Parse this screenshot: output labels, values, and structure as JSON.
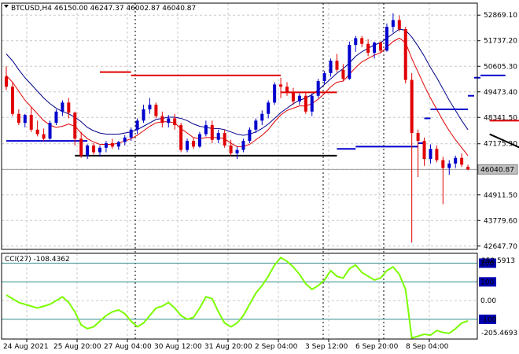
{
  "header": {
    "symbol_line": "BTCUSD,H4  46150.00 46247.37 46002.87 46040.87",
    "menu_icon": "triangle-down-icon"
  },
  "indicator": {
    "label": "CCI(27) -108.4362",
    "scale_top": "252.5913",
    "scale_bottom": "-205.4693",
    "levels": [
      200,
      100,
      0,
      -100
    ],
    "level_labels": [
      "200",
      "100",
      "0.00",
      "-100"
    ]
  },
  "price_axis": {
    "ticks": [
      "52869.10",
      "51737.20",
      "50605.30",
      "49473.40",
      "48341.50",
      "47175.30",
      "46043.40",
      "44911.50",
      "43779.60",
      "42647.70"
    ],
    "current_price": "46040.87"
  },
  "time_axis": {
    "labels": [
      "24 Aug 2021",
      "25 Aug 20:00",
      "27 Aug 04:00",
      "30 Aug 12:00",
      "31 Aug 20:00",
      "2 Sep 04:00",
      "3 Sep 12:00",
      "6 Sep 20:00",
      "8 Sep 04:00"
    ]
  },
  "colors": {
    "bull": "#0000cd",
    "bear": "#e00000",
    "grid": "#c8c8c8",
    "cci": "#7cfc00",
    "level_teal": "#2e8b8b",
    "current_price_box": "#c0c0c0"
  },
  "chart_data": [
    {
      "type": "candlestick",
      "title": "BTCUSD,H4",
      "ylim": [
        42500,
        53400
      ],
      "ohlc": [
        [
          50150,
          50600,
          49550,
          49700
        ],
        [
          49700,
          49900,
          48400,
          48500
        ],
        [
          48500,
          48700,
          48000,
          48100
        ],
        [
          48100,
          48500,
          47900,
          48450
        ],
        [
          48450,
          48800,
          47700,
          47800
        ],
        [
          47800,
          48200,
          47500,
          47600
        ],
        [
          47600,
          47850,
          47300,
          47400
        ],
        [
          47400,
          48200,
          47350,
          48100
        ],
        [
          48100,
          48700,
          48000,
          48600
        ],
        [
          48600,
          49100,
          48400,
          49000
        ],
        [
          49000,
          49200,
          48300,
          48550
        ],
        [
          48550,
          48600,
          47100,
          47400
        ],
        [
          47400,
          47700,
          46550,
          46650
        ],
        [
          46650,
          47150,
          46500,
          47100
        ],
        [
          47100,
          47200,
          46700,
          46800
        ],
        [
          46800,
          47100,
          46600,
          47000
        ],
        [
          47000,
          47300,
          46800,
          47200
        ],
        [
          47200,
          47400,
          46950,
          47050
        ],
        [
          47050,
          47300,
          46900,
          47250
        ],
        [
          47250,
          47550,
          47100,
          47450
        ],
        [
          47450,
          47900,
          47300,
          47800
        ],
        [
          47800,
          48300,
          47600,
          48200
        ],
        [
          48200,
          48900,
          48100,
          48700
        ],
        [
          48700,
          49200,
          48500,
          48900
        ],
        [
          48900,
          49000,
          48300,
          48400
        ],
        [
          48400,
          48600,
          47900,
          48100
        ],
        [
          48100,
          48450,
          47900,
          48300
        ],
        [
          48300,
          48500,
          47800,
          48000
        ],
        [
          48000,
          48100,
          46800,
          46900
        ],
        [
          46900,
          47400,
          46800,
          47300
        ],
        [
          47300,
          47450,
          46950,
          47050
        ],
        [
          47050,
          47700,
          47000,
          47600
        ],
        [
          47600,
          48200,
          47500,
          48000
        ],
        [
          48000,
          48200,
          47200,
          47350
        ],
        [
          47350,
          47800,
          47200,
          47650
        ],
        [
          47650,
          47800,
          47000,
          47100
        ],
        [
          47100,
          47350,
          46650,
          46750
        ],
        [
          46750,
          47050,
          46500,
          46900
        ],
        [
          46900,
          47400,
          46800,
          47300
        ],
        [
          47300,
          47900,
          47200,
          47800
        ],
        [
          47800,
          48300,
          47650,
          48200
        ],
        [
          48200,
          48650,
          48000,
          48500
        ],
        [
          48500,
          49100,
          48300,
          49000
        ],
        [
          49000,
          49900,
          48900,
          49800
        ],
        [
          49800,
          50100,
          49200,
          49700
        ],
        [
          49700,
          49900,
          49300,
          49450
        ],
        [
          49450,
          49650,
          48900,
          49050
        ],
        [
          49050,
          49400,
          48900,
          49300
        ],
        [
          49300,
          49450,
          48500,
          48600
        ],
        [
          48600,
          49400,
          48400,
          49300
        ],
        [
          49300,
          50050,
          49200,
          49950
        ],
        [
          49950,
          50400,
          49800,
          50300
        ],
        [
          50300,
          50950,
          50150,
          50850
        ],
        [
          50850,
          51150,
          50350,
          50450
        ],
        [
          50450,
          50700,
          49950,
          50050
        ],
        [
          50050,
          51700,
          50000,
          51550
        ],
        [
          51550,
          51950,
          51250,
          51850
        ],
        [
          51850,
          51950,
          51450,
          51600
        ],
        [
          51600,
          51800,
          51050,
          51200
        ],
        [
          51200,
          51700,
          50950,
          51650
        ],
        [
          51650,
          51700,
          51200,
          51300
        ],
        [
          51300,
          52500,
          51250,
          52350
        ],
        [
          52350,
          52950,
          52100,
          52650
        ],
        [
          52650,
          52850,
          52150,
          52250
        ],
        [
          52250,
          52350,
          49850,
          50000
        ],
        [
          50000,
          50300,
          42800,
          47650
        ],
        [
          47650,
          47800,
          45700,
          47300
        ],
        [
          47300,
          47450,
          46200,
          46500
        ],
        [
          46500,
          47150,
          46300,
          46950
        ],
        [
          46950,
          47100,
          46350,
          46450
        ],
        [
          46450,
          46600,
          44500,
          46100
        ],
        [
          46100,
          46450,
          45800,
          46300
        ],
        [
          46300,
          46650,
          46100,
          46550
        ],
        [
          46550,
          46750,
          46150,
          46250
        ],
        [
          46150,
          46247.37,
          46002.87,
          46040.87
        ]
      ],
      "ma_fast": [
        50200,
        49900,
        49500,
        49100,
        48800,
        48500,
        48200,
        48000,
        47900,
        47950,
        48050,
        47950,
        47650,
        47400,
        47250,
        47150,
        47150,
        47150,
        47200,
        47300,
        47400,
        47550,
        47750,
        47950,
        48100,
        48150,
        48150,
        48100,
        47850,
        47650,
        47450,
        47400,
        47450,
        47450,
        47450,
        47400,
        47200,
        47050,
        47050,
        47150,
        47350,
        47550,
        47800,
        48150,
        48450,
        48650,
        48750,
        48850,
        48850,
        48950,
        49150,
        49400,
        49700,
        49900,
        49950,
        50250,
        50550,
        50800,
        50950,
        51100,
        51200,
        51450,
        51700,
        51850,
        51650,
        50950,
        50350,
        49750,
        49200,
        48700,
        48200,
        47750,
        47350,
        47000,
        46650
      ],
      "ma_slow": [
        51150,
        50850,
        50450,
        50100,
        49800,
        49500,
        49200,
        48950,
        48750,
        48600,
        48500,
        48350,
        48150,
        47900,
        47750,
        47650,
        47600,
        47600,
        47600,
        47650,
        47700,
        47800,
        47950,
        48100,
        48250,
        48300,
        48350,
        48350,
        48300,
        48200,
        48050,
        47950,
        47900,
        47850,
        47850,
        47800,
        47700,
        47600,
        47550,
        47600,
        47700,
        47850,
        48050,
        48300,
        48550,
        48750,
        48950,
        49100,
        49200,
        49350,
        49550,
        49800,
        50050,
        50300,
        50500,
        50750,
        51050,
        51250,
        51400,
        51550,
        51650,
        51850,
        52050,
        52250,
        52200,
        51900,
        51500,
        51050,
        50550,
        50100,
        49600,
        49100,
        48650,
        48200,
        47800
      ],
      "support_levels": [
        {
          "price": 46650,
          "from_bar": 11,
          "to_bar": 53,
          "color": "#000000"
        }
      ],
      "resistance_steps": [
        {
          "price": 50350,
          "from_bar": 15,
          "to_bar": 20
        },
        {
          "price": 50200,
          "from_bar": 20,
          "to_bar": 44
        },
        {
          "price": 49450,
          "from_bar": 44,
          "to_bar": 53
        }
      ],
      "post_drop_resistance": {
        "price": 48200,
        "from_bar": 80,
        "to_bar": 90
      },
      "blue_support": [
        {
          "price": 47300,
          "from_bar": 0,
          "to_bar": 13
        },
        {
          "price": 46950,
          "from_bar": 53,
          "to_bar": 56
        },
        {
          "price": 47050,
          "from_bar": 56,
          "to_bar": 66
        },
        {
          "price": 47200,
          "from_bar": 66,
          "to_bar": 67
        },
        {
          "price": 48300,
          "from_bar": 67,
          "to_bar": 68
        },
        {
          "price": 48700,
          "from_bar": 68,
          "to_bar": 74
        },
        {
          "price": 49300,
          "from_bar": 74,
          "to_bar": 75
        },
        {
          "price": 50100,
          "from_bar": 75,
          "to_bar": 76
        },
        {
          "price": 50200,
          "from_bar": 76,
          "to_bar": 80
        }
      ],
      "trendline": {
        "from": [
          80,
          47600
        ],
        "to": [
          93,
          46150
        ]
      }
    },
    {
      "type": "line",
      "title": "CCI(27)",
      "ylim": [
        -205.4693,
        252.5913
      ],
      "values": [
        30,
        10,
        -10,
        -20,
        -30,
        -40,
        -30,
        -20,
        0,
        20,
        -10,
        -60,
        -130,
        -150,
        -140,
        -110,
        -80,
        -60,
        -50,
        -70,
        -110,
        -140,
        -120,
        -80,
        -40,
        -30,
        -10,
        -40,
        -80,
        -100,
        -90,
        -40,
        20,
        10,
        -60,
        -120,
        -140,
        -120,
        -80,
        -20,
        40,
        80,
        130,
        190,
        230,
        210,
        180,
        140,
        90,
        60,
        80,
        110,
        160,
        130,
        120,
        170,
        190,
        150,
        130,
        110,
        120,
        160,
        180,
        140,
        60,
        -200,
        -190,
        -180,
        -185,
        -160,
        -170,
        -175,
        -150,
        -120,
        -108.4362
      ],
      "levels": [
        200,
        100,
        0,
        -100
      ]
    }
  ]
}
